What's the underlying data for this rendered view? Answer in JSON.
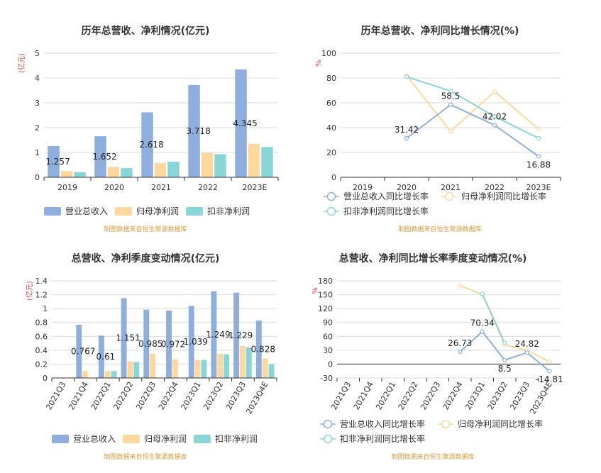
{
  "chart_data": [
    {
      "type": "bar",
      "title": "历年总营收、净利情况(亿元)",
      "ylabel": "(亿元)",
      "ylim": [
        0,
        5
      ],
      "yticks": [
        0,
        1,
        2,
        3,
        4,
        5
      ],
      "categories": [
        "2019",
        "2020",
        "2021",
        "2022",
        "2023E"
      ],
      "series": [
        {
          "name": "营业总收入",
          "values": [
            1.257,
            1.652,
            2.618,
            3.718,
            4.345
          ],
          "labels": [
            "1.257",
            "1.652",
            "2.618",
            "3.718",
            "4.345"
          ]
        },
        {
          "name": "归母净利润",
          "values": [
            0.25,
            0.42,
            0.58,
            0.98,
            1.35
          ]
        },
        {
          "name": "扣非净利润",
          "values": [
            0.2,
            0.37,
            0.63,
            0.93,
            1.22
          ]
        }
      ],
      "colors": [
        "#8eaedd",
        "#fcd89d",
        "#88d6d8"
      ],
      "grid": true,
      "legend_position": "bottom",
      "source": "制图数据来自恒生聚源数据库"
    },
    {
      "type": "line",
      "title": "历年总营收、净利同比增长情况(%)",
      "ylabel": "%",
      "ylim": [
        0,
        100
      ],
      "yticks": [
        0,
        20,
        40,
        60,
        80,
        100
      ],
      "categories": [
        "2019",
        "2020",
        "2021",
        "2022",
        "2023E"
      ],
      "series": [
        {
          "name": "营业总收入同比增长率",
          "values": [
            null,
            31.42,
            58.5,
            42.02,
            16.88
          ],
          "labels": [
            "",
            "31.42",
            "58.5",
            "42.02",
            "16.88"
          ]
        },
        {
          "name": "归母净利润同比增长率",
          "values": [
            null,
            82,
            37,
            69,
            39
          ]
        },
        {
          "name": "扣非净利润同比增长率",
          "values": [
            null,
            81,
            69.5,
            49,
            31.5
          ]
        }
      ],
      "colors": [
        "#8eaedd",
        "#fcd89d",
        "#88d6d8"
      ],
      "grid": true,
      "legend_position": "bottom",
      "source": "制图数据来自恒生聚源数据库"
    },
    {
      "type": "bar",
      "title": "总营收、净利季度变动情况(亿元)",
      "ylabel": "(亿元)",
      "ylim": [
        0,
        1.4
      ],
      "yticks": [
        0,
        0.2,
        0.4,
        0.6,
        0.8,
        1,
        1.2,
        1.4
      ],
      "categories": [
        "2021Q3",
        "2021Q4",
        "2022Q1",
        "2022Q2",
        "2022Q3",
        "2022Q4",
        "2023Q1",
        "2023Q2",
        "2023Q3",
        "2023Q4E"
      ],
      "series": [
        {
          "name": "营业总收入",
          "values": [
            null,
            0.767,
            0.61,
            1.151,
            0.985,
            0.972,
            1.039,
            1.249,
            1.229,
            0.828
          ],
          "labels": [
            "",
            "0.767",
            "0.61",
            "1.151",
            "0.985",
            "0.972",
            "1.039",
            "1.249",
            "1.229",
            "0.828"
          ]
        },
        {
          "name": "归母净利润",
          "values": [
            null,
            0.1,
            0.1,
            0.24,
            0.35,
            0.27,
            0.26,
            0.35,
            0.46,
            0.28
          ]
        },
        {
          "name": "扣非净利润",
          "values": [
            null,
            null,
            0.1,
            0.23,
            null,
            null,
            0.26,
            0.34,
            0.44,
            0.2
          ]
        }
      ],
      "colors": [
        "#8eaedd",
        "#fcd89d",
        "#88d6d8"
      ],
      "grid": true,
      "legend_position": "bottom",
      "source": "制图数据来自恒生聚源数据库"
    },
    {
      "type": "line",
      "title": "总营收、净利同比增长率季度变动情况(%)",
      "ylabel": "%",
      "ylim": [
        -30,
        180
      ],
      "yticks": [
        -30,
        0,
        30,
        60,
        90,
        120,
        150,
        180
      ],
      "categories": [
        "2021Q3",
        "2021Q4",
        "2022Q1",
        "2022Q2",
        "2022Q3",
        "2022Q4",
        "2023Q1",
        "2023Q2",
        "2023Q3",
        "2023Q4E"
      ],
      "series": [
        {
          "name": "营业总收入同比增长率",
          "values": [
            null,
            null,
            null,
            null,
            null,
            26.73,
            70.34,
            8.5,
            24.82,
            -14.81
          ],
          "labels": [
            "",
            "",
            "",
            "",
            "",
            "26.73",
            "70.34",
            "8.5",
            "24.82",
            "-14.81"
          ]
        },
        {
          "name": "归母净利润同比增长率",
          "values": [
            null,
            null,
            null,
            null,
            null,
            170,
            150,
            42,
            30,
            5
          ]
        },
        {
          "name": "扣非净利润同比增长率",
          "values": [
            null,
            null,
            null,
            null,
            null,
            null,
            152,
            46,
            null,
            null
          ]
        }
      ],
      "colors": [
        "#8eaedd",
        "#fcd89d",
        "#88d6d8"
      ],
      "grid": true,
      "legend_position": "bottom",
      "source": "制图数据来自恒生聚源数据库"
    }
  ]
}
